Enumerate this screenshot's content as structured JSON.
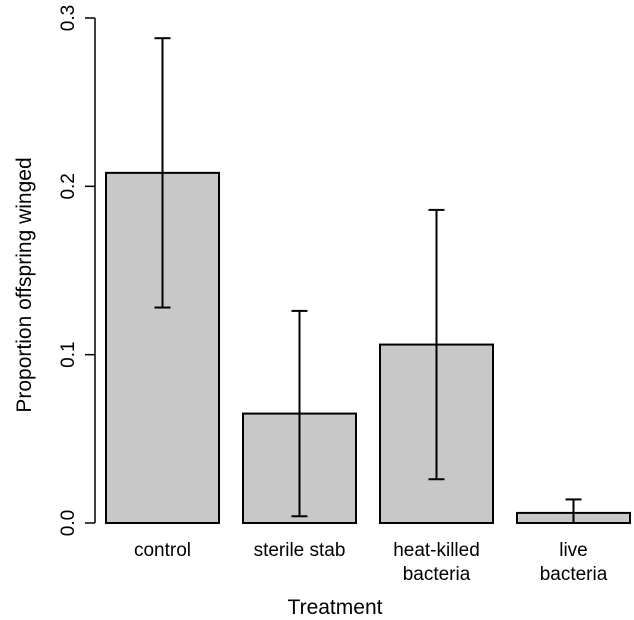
{
  "chart_data": {
    "type": "bar",
    "categories": [
      [
        "control"
      ],
      [
        "sterile stab"
      ],
      [
        "heat-killed",
        "bacteria"
      ],
      [
        "live",
        "bacteria"
      ]
    ],
    "values": [
      0.208,
      0.065,
      0.106,
      0.006
    ],
    "error_bars": [
      {
        "low": 0.128,
        "high": 0.288
      },
      {
        "low": 0.004,
        "high": 0.126
      },
      {
        "low": 0.026,
        "high": 0.186
      },
      {
        "low": 0.0,
        "high": 0.014
      }
    ],
    "xlabel": "Treatment",
    "ylabel": "Proportion offspring winged",
    "ylim": [
      0,
      0.3
    ],
    "yticks": [
      "0.0",
      "0.1",
      "0.2",
      "0.3"
    ],
    "bar_color": "#c8c8c8",
    "grid": false
  }
}
